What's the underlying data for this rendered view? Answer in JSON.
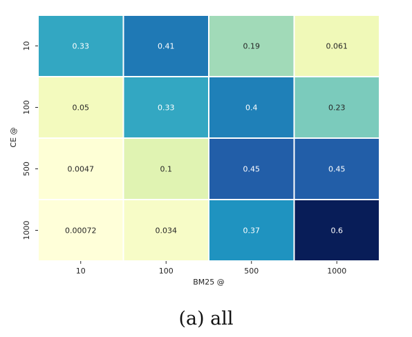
{
  "caption": "(a) all",
  "chart_data": {
    "type": "heatmap",
    "xlabel": "BM25 @",
    "ylabel": "CE @",
    "x_categories": [
      "10",
      "100",
      "500",
      "1000"
    ],
    "y_categories": [
      "10",
      "100",
      "500",
      "1000"
    ],
    "values": [
      [
        0.33,
        0.41,
        0.19,
        0.061
      ],
      [
        0.05,
        0.33,
        0.4,
        0.23
      ],
      [
        0.0047,
        0.1,
        0.45,
        0.45
      ],
      [
        0.00072,
        0.034,
        0.37,
        0.6
      ]
    ],
    "value_labels": [
      [
        "0.33",
        "0.41",
        "0.19",
        "0.061"
      ],
      [
        "0.05",
        "0.33",
        "0.4",
        "0.23"
      ],
      [
        "0.0047",
        "0.1",
        "0.45",
        "0.45"
      ],
      [
        "0.00072",
        "0.034",
        "0.37",
        "0.6"
      ]
    ],
    "colormap": "YlGnBu",
    "color_range": [
      0,
      0.6
    ],
    "colorbar": false,
    "grid": false
  }
}
